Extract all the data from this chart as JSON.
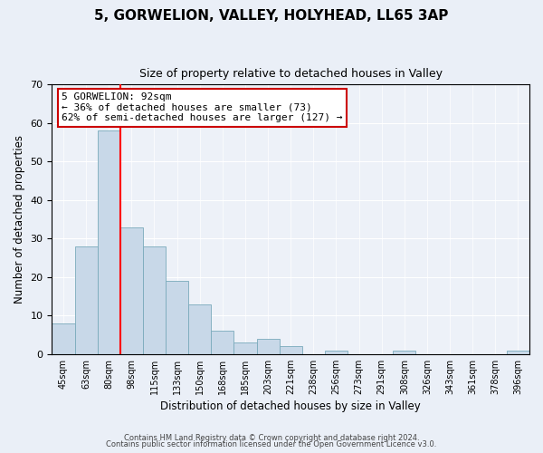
{
  "title1": "5, GORWELION, VALLEY, HOLYHEAD, LL65 3AP",
  "title2": "Size of property relative to detached houses in Valley",
  "xlabel": "Distribution of detached houses by size in Valley",
  "ylabel": "Number of detached properties",
  "categories": [
    "45sqm",
    "63sqm",
    "80sqm",
    "98sqm",
    "115sqm",
    "133sqm",
    "150sqm",
    "168sqm",
    "185sqm",
    "203sqm",
    "221sqm",
    "238sqm",
    "256sqm",
    "273sqm",
    "291sqm",
    "308sqm",
    "326sqm",
    "343sqm",
    "361sqm",
    "378sqm",
    "396sqm"
  ],
  "values": [
    8,
    28,
    58,
    33,
    28,
    19,
    13,
    6,
    3,
    4,
    2,
    0,
    1,
    0,
    0,
    1,
    0,
    0,
    0,
    0,
    1
  ],
  "bar_color": "#c8d8e8",
  "bar_edge_color": "#7aaabb",
  "red_line_x": 2.5,
  "ylim": [
    0,
    70
  ],
  "yticks": [
    0,
    10,
    20,
    30,
    40,
    50,
    60,
    70
  ],
  "annotation_line1": "5 GORWELION: 92sqm",
  "annotation_line2": "← 36% of detached houses are smaller (73)",
  "annotation_line3": "62% of semi-detached houses are larger (127) →",
  "annotation_box_color": "#ffffff",
  "annotation_box_edge": "#cc0000",
  "footer1": "Contains HM Land Registry data © Crown copyright and database right 2024.",
  "footer2": "Contains public sector information licensed under the Open Government Licence v3.0.",
  "bg_color": "#eaeff7",
  "plot_bg_color": "#edf1f8",
  "grid_color": "#ffffff",
  "title1_fontsize": 11,
  "title2_fontsize": 9,
  "xlabel_fontsize": 8.5,
  "ylabel_fontsize": 8.5,
  "annotation_fontsize": 8,
  "footer_fontsize": 6
}
